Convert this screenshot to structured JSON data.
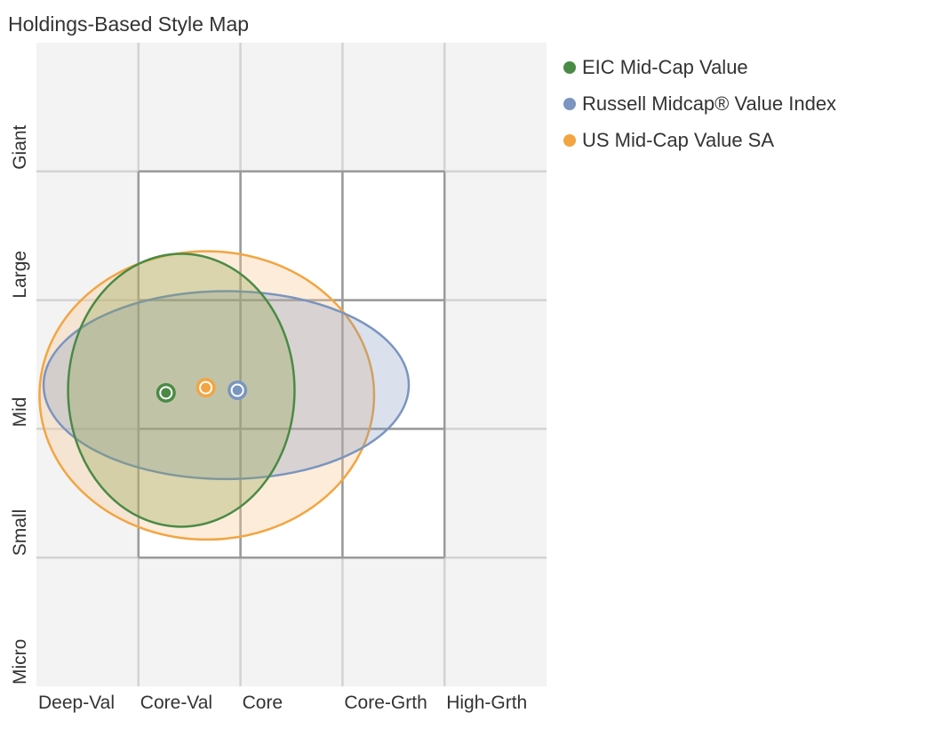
{
  "title": "Holdings-Based Style Map",
  "chart_data": {
    "type": "scatter",
    "title": "Holdings-Based Style Map",
    "x_categories": [
      "Deep-Val",
      "Core-Val",
      "Core",
      "Core-Grth",
      "High-Grth"
    ],
    "y_categories": [
      "Micro",
      "Small",
      "Mid",
      "Large",
      "Giant"
    ],
    "x_scale": [
      0,
      500
    ],
    "y_scale": [
      0,
      500
    ],
    "style_box": {
      "x": [
        100,
        400
      ],
      "y": [
        100,
        400
      ]
    },
    "grid": true,
    "legend_position": "right",
    "series": [
      {
        "name": "EIC Mid-Cap Value",
        "color": "#4a8a45",
        "fill": "rgba(138,158,70,0.30)",
        "centroid": {
          "x": 127,
          "y": 228
        },
        "ellipse_center": {
          "x": 142,
          "y": 230
        },
        "ellipse_radii": {
          "x": 111,
          "y": 106
        },
        "ellipse_rotation": 0
      },
      {
        "name": "Russell Midcap® Value Index",
        "color": "#7a95bf",
        "fill": "rgba(122,149,191,0.28)",
        "centroid": {
          "x": 197,
          "y": 230
        },
        "ellipse_center": {
          "x": 186,
          "y": 234
        },
        "ellipse_radii": {
          "x": 179,
          "y": 73
        },
        "ellipse_rotation": 0
      },
      {
        "name": "US Mid-Cap Value SA",
        "color": "#f2a541",
        "fill": "rgba(250,200,150,0.35)",
        "centroid": {
          "x": 166,
          "y": 232
        },
        "ellipse_center": {
          "x": 167,
          "y": 226
        },
        "ellipse_radii": {
          "x": 164,
          "y": 112
        },
        "ellipse_rotation": 0
      }
    ]
  },
  "colors": {
    "background": "#f3f3f3",
    "style_box": "#ffffff",
    "style_box_border": "#9a9a9a",
    "grid_line": "#d3d3d3",
    "text": "#333333"
  }
}
